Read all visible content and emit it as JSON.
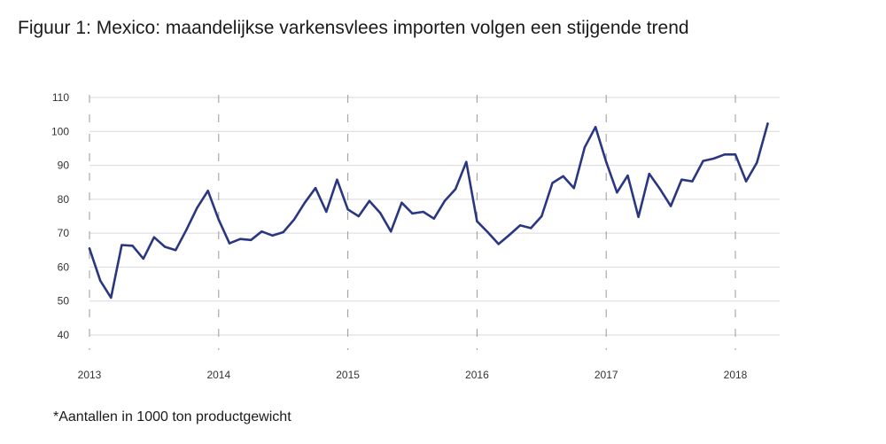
{
  "title": "Figuur 1: Mexico: maandelijkse varkensvlees importen volgen een stijgende trend",
  "footnote": "*Aantallen in 1000 ton productgewicht",
  "colors": {
    "line": "#2a3780",
    "grid": "#d9d9d9",
    "dash": "#999999"
  },
  "chart_data": {
    "type": "line",
    "title": "Figuur 1: Mexico: maandelijkse varkensvlees importen volgen een stijgende trend",
    "xlabel": "",
    "ylabel": "",
    "ylim": [
      40,
      110
    ],
    "yticks": [
      40,
      50,
      60,
      70,
      80,
      90,
      100,
      110
    ],
    "xlim": [
      "2013-01",
      "2018-05"
    ],
    "xticks": [
      "2013",
      "2014",
      "2015",
      "2016",
      "2017",
      "2018"
    ],
    "grid": true,
    "legend": "none",
    "series": [
      {
        "x": [
          "2013-01",
          "2013-02",
          "2013-03",
          "2013-04",
          "2013-05",
          "2013-06",
          "2013-07",
          "2013-08",
          "2013-09",
          "2013-10",
          "2013-11",
          "2013-12",
          "2014-01",
          "2014-02",
          "2014-03",
          "2014-04",
          "2014-05",
          "2014-06",
          "2014-07",
          "2014-08",
          "2014-09",
          "2014-10",
          "2014-11",
          "2014-12",
          "2015-01",
          "2015-02",
          "2015-03",
          "2015-04",
          "2015-05",
          "2015-06",
          "2015-07",
          "2015-08",
          "2015-09",
          "2015-10",
          "2015-11",
          "2015-12",
          "2016-01",
          "2016-02",
          "2016-03",
          "2016-04",
          "2016-05",
          "2016-06",
          "2016-07",
          "2016-08",
          "2016-09",
          "2016-10",
          "2016-11",
          "2016-12",
          "2017-01",
          "2017-02",
          "2017-03",
          "2017-04",
          "2017-05",
          "2017-06",
          "2017-07",
          "2017-08",
          "2017-09",
          "2017-10",
          "2017-11",
          "2017-12",
          "2018-01",
          "2018-02",
          "2018-03",
          "2018-04"
        ],
        "values": [
          65.5,
          56,
          51,
          66.5,
          66.3,
          62.5,
          68.8,
          66,
          65,
          71,
          77.5,
          82.5,
          74,
          67,
          68.3,
          68,
          70.5,
          69.3,
          70.3,
          74,
          79,
          83.3,
          76.3,
          85.8,
          77,
          75,
          79.5,
          76,
          70.5,
          79,
          75.8,
          76.3,
          74.3,
          79.5,
          83,
          91,
          73.5,
          70.3,
          66.8,
          69.5,
          72.3,
          71.5,
          75,
          84.8,
          86.8,
          83.3,
          95.3,
          101.3,
          91,
          82,
          87,
          74.8,
          87.5,
          83,
          78,
          85.8,
          85.3,
          91.3,
          92,
          93.2,
          93.2,
          85.3,
          90.8,
          102.3
        ]
      }
    ]
  }
}
